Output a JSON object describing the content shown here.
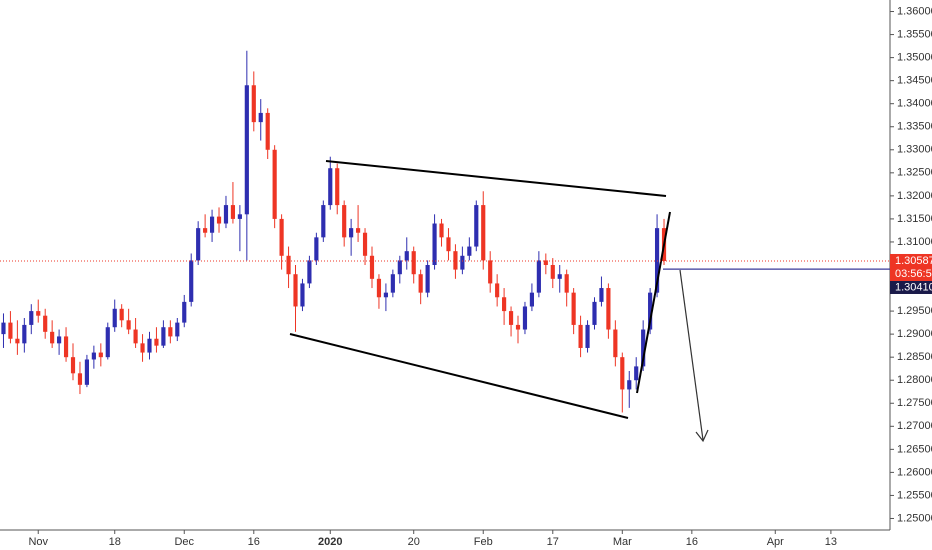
{
  "chart_data": {
    "type": "candlestick",
    "categories": [
      null,
      null,
      null,
      null,
      null,
      "Nov",
      null,
      null,
      null,
      null,
      null,
      null,
      null,
      null,
      null,
      null,
      "18",
      null,
      null,
      null,
      null,
      null,
      null,
      null,
      null,
      null,
      "Dec",
      null,
      null,
      null,
      null,
      null,
      null,
      null,
      null,
      null,
      "16",
      null,
      null,
      null,
      null,
      null,
      null,
      null,
      null,
      null,
      null,
      "2020",
      null,
      null,
      null,
      null,
      null,
      null,
      null,
      null,
      null,
      null,
      null,
      "20",
      null,
      null,
      null,
      null,
      null,
      null,
      null,
      null,
      null,
      "Feb",
      null,
      null,
      null,
      null,
      null,
      null,
      null,
      null,
      null,
      "17",
      null,
      null,
      null,
      null,
      null,
      null,
      null,
      null,
      null,
      "Mar",
      null,
      null,
      null,
      null,
      null,
      null,
      null,
      null,
      null,
      "16",
      null,
      null,
      null,
      null,
      null,
      null,
      null,
      null,
      null,
      null,
      null,
      "Apr",
      null,
      null,
      null,
      null,
      null,
      null,
      null,
      "13",
      null,
      null,
      null,
      null,
      null,
      null,
      null,
      null
    ],
    "ohlc": [
      [
        1.29,
        1.2945,
        1.287,
        1.2925
      ],
      [
        1.2925,
        1.295,
        1.288,
        1.289
      ],
      [
        1.289,
        1.293,
        1.2855,
        1.288
      ],
      [
        1.288,
        1.2935,
        1.286,
        1.292
      ],
      [
        1.292,
        1.2965,
        1.29,
        1.295
      ],
      [
        1.295,
        1.2975,
        1.2925,
        1.294
      ],
      [
        1.294,
        1.2955,
        1.289,
        1.2905
      ],
      [
        1.2905,
        1.293,
        1.287,
        1.288
      ],
      [
        1.288,
        1.291,
        1.2855,
        1.2895
      ],
      [
        1.2895,
        1.2915,
        1.284,
        1.285
      ],
      [
        1.285,
        1.288,
        1.28,
        1.2815
      ],
      [
        1.2815,
        1.284,
        1.277,
        1.279
      ],
      [
        1.279,
        1.2855,
        1.2785,
        1.2845
      ],
      [
        1.2845,
        1.2875,
        1.2825,
        1.286
      ],
      [
        1.286,
        1.288,
        1.283,
        1.285
      ],
      [
        1.285,
        1.2925,
        1.2845,
        1.2915
      ],
      [
        1.2915,
        1.2975,
        1.2905,
        1.2955
      ],
      [
        1.2955,
        1.2965,
        1.2915,
        1.293
      ],
      [
        1.293,
        1.2955,
        1.29,
        1.291
      ],
      [
        1.291,
        1.2935,
        1.287,
        1.288
      ],
      [
        1.288,
        1.29,
        1.284,
        1.286
      ],
      [
        1.286,
        1.2905,
        1.2845,
        1.289
      ],
      [
        1.289,
        1.2915,
        1.286,
        1.2875
      ],
      [
        1.2875,
        1.293,
        1.287,
        1.2915
      ],
      [
        1.2915,
        1.293,
        1.288,
        1.2895
      ],
      [
        1.2895,
        1.2935,
        1.2885,
        1.2925
      ],
      [
        1.2925,
        1.2985,
        1.2915,
        1.297
      ],
      [
        1.297,
        1.3075,
        1.296,
        1.306
      ],
      [
        1.306,
        1.3145,
        1.305,
        1.313
      ],
      [
        1.313,
        1.316,
        1.311,
        1.312
      ],
      [
        1.312,
        1.317,
        1.31,
        1.3155
      ],
      [
        1.3155,
        1.3175,
        1.312,
        1.314
      ],
      [
        1.314,
        1.32,
        1.313,
        1.318
      ],
      [
        1.318,
        1.323,
        1.314,
        1.315
      ],
      [
        1.315,
        1.318,
        1.308,
        1.316
      ],
      [
        1.316,
        1.3515,
        1.306,
        1.344
      ],
      [
        1.344,
        1.347,
        1.334,
        1.336
      ],
      [
        1.336,
        1.341,
        1.332,
        1.338
      ],
      [
        1.338,
        1.339,
        1.328,
        1.33
      ],
      [
        1.33,
        1.331,
        1.313,
        1.315
      ],
      [
        1.315,
        1.316,
        1.304,
        1.307
      ],
      [
        1.307,
        1.309,
        1.3,
        1.303
      ],
      [
        1.303,
        1.305,
        1.2905,
        1.296
      ],
      [
        1.296,
        1.302,
        1.295,
        1.301
      ],
      [
        1.301,
        1.307,
        1.3,
        1.306
      ],
      [
        1.306,
        1.312,
        1.305,
        1.311
      ],
      [
        1.311,
        1.319,
        1.31,
        1.318
      ],
      [
        1.318,
        1.3285,
        1.317,
        1.326
      ],
      [
        1.326,
        1.327,
        1.316,
        1.318
      ],
      [
        1.318,
        1.319,
        1.309,
        1.311
      ],
      [
        1.311,
        1.315,
        1.307,
        1.313
      ],
      [
        1.313,
        1.318,
        1.31,
        1.312
      ],
      [
        1.312,
        1.313,
        1.305,
        1.307
      ],
      [
        1.307,
        1.309,
        1.3,
        1.302
      ],
      [
        1.302,
        1.303,
        1.2955,
        1.298
      ],
      [
        1.298,
        1.301,
        1.295,
        1.299
      ],
      [
        1.299,
        1.304,
        1.298,
        1.303
      ],
      [
        1.303,
        1.307,
        1.301,
        1.306
      ],
      [
        1.306,
        1.311,
        1.304,
        1.308
      ],
      [
        1.308,
        1.309,
        1.301,
        1.303
      ],
      [
        1.303,
        1.304,
        1.2965,
        1.299
      ],
      [
        1.299,
        1.306,
        1.298,
        1.305
      ],
      [
        1.305,
        1.316,
        1.304,
        1.314
      ],
      [
        1.314,
        1.315,
        1.309,
        1.311
      ],
      [
        1.311,
        1.313,
        1.306,
        1.308
      ],
      [
        1.308,
        1.3095,
        1.302,
        1.304
      ],
      [
        1.304,
        1.309,
        1.303,
        1.307
      ],
      [
        1.307,
        1.311,
        1.306,
        1.309
      ],
      [
        1.309,
        1.319,
        1.308,
        1.318
      ],
      [
        1.318,
        1.321,
        1.304,
        1.306
      ],
      [
        1.306,
        1.308,
        1.299,
        1.301
      ],
      [
        1.301,
        1.303,
        1.296,
        1.298
      ],
      [
        1.298,
        1.3,
        1.292,
        1.295
      ],
      [
        1.295,
        1.296,
        1.2895,
        1.292
      ],
      [
        1.292,
        1.294,
        1.288,
        1.291
      ],
      [
        1.291,
        1.297,
        1.29,
        1.296
      ],
      [
        1.296,
        1.301,
        1.295,
        1.299
      ],
      [
        1.299,
        1.308,
        1.298,
        1.306
      ],
      [
        1.306,
        1.3075,
        1.303,
        1.305
      ],
      [
        1.305,
        1.3065,
        1.3,
        1.302
      ],
      [
        1.302,
        1.305,
        1.299,
        1.303
      ],
      [
        1.303,
        1.304,
        1.296,
        1.299
      ],
      [
        1.299,
        1.3,
        1.29,
        1.292
      ],
      [
        1.292,
        1.294,
        1.285,
        1.287
      ],
      [
        1.287,
        1.293,
        1.286,
        1.292
      ],
      [
        1.292,
        1.298,
        1.291,
        1.297
      ],
      [
        1.297,
        1.3025,
        1.296,
        1.3
      ],
      [
        1.3,
        1.301,
        1.289,
        1.291
      ],
      [
        1.291,
        1.293,
        1.283,
        1.285
      ],
      [
        1.285,
        1.286,
        1.273,
        1.278
      ],
      [
        1.278,
        1.282,
        1.274,
        1.28
      ],
      [
        1.28,
        1.285,
        1.278,
        1.283
      ],
      [
        1.283,
        1.293,
        1.282,
        1.291
      ],
      [
        1.291,
        1.3,
        1.29,
        1.299
      ],
      [
        1.299,
        1.316,
        1.298,
        1.313
      ],
      [
        1.313,
        1.315,
        1.305,
        1.30587
      ],
      null,
      null,
      null,
      null,
      null,
      null,
      null,
      null,
      null,
      null,
      null,
      null,
      null,
      null,
      null,
      null,
      null,
      null,
      null,
      null,
      null,
      null,
      null,
      null,
      null,
      null,
      null,
      null,
      null,
      null,
      null,
      null
    ],
    "up_color": "#2e2eb0",
    "down_color": "#ee3524",
    "ylim": [
      1.2475,
      1.3625
    ],
    "yticks": [
      {
        "value": 1.25,
        "label": "1.25000"
      },
      {
        "value": 1.255,
        "label": "1.25500"
      },
      {
        "value": 1.26,
        "label": "1.26000"
      },
      {
        "value": 1.265,
        "label": "1.26500"
      },
      {
        "value": 1.27,
        "label": "1.27000"
      },
      {
        "value": 1.275,
        "label": "1.27500"
      },
      {
        "value": 1.28,
        "label": "1.28000"
      },
      {
        "value": 1.285,
        "label": "1.28500"
      },
      {
        "value": 1.29,
        "label": "1.29000"
      },
      {
        "value": 1.295,
        "label": "1.29500"
      },
      {
        "value": 1.3,
        "label": "1.30000"
      },
      {
        "value": 1.305,
        "label": "1.30500"
      },
      {
        "value": 1.31,
        "label": "1.31000"
      },
      {
        "value": 1.315,
        "label": "1.31500"
      },
      {
        "value": 1.32,
        "label": "1.32000"
      },
      {
        "value": 1.325,
        "label": "1.32500"
      },
      {
        "value": 1.33,
        "label": "1.33000"
      },
      {
        "value": 1.335,
        "label": "1.33500"
      },
      {
        "value": 1.34,
        "label": "1.34000"
      },
      {
        "value": 1.345,
        "label": "1.34500"
      },
      {
        "value": 1.35,
        "label": "1.35000"
      },
      {
        "value": 1.355,
        "label": "1.35500"
      },
      {
        "value": 1.36,
        "label": "1.36000"
      }
    ],
    "last_price": 1.30587,
    "countdown": "03:56:56",
    "line_price": {
      "value": 1.3041,
      "label": "1.30410"
    }
  }
}
